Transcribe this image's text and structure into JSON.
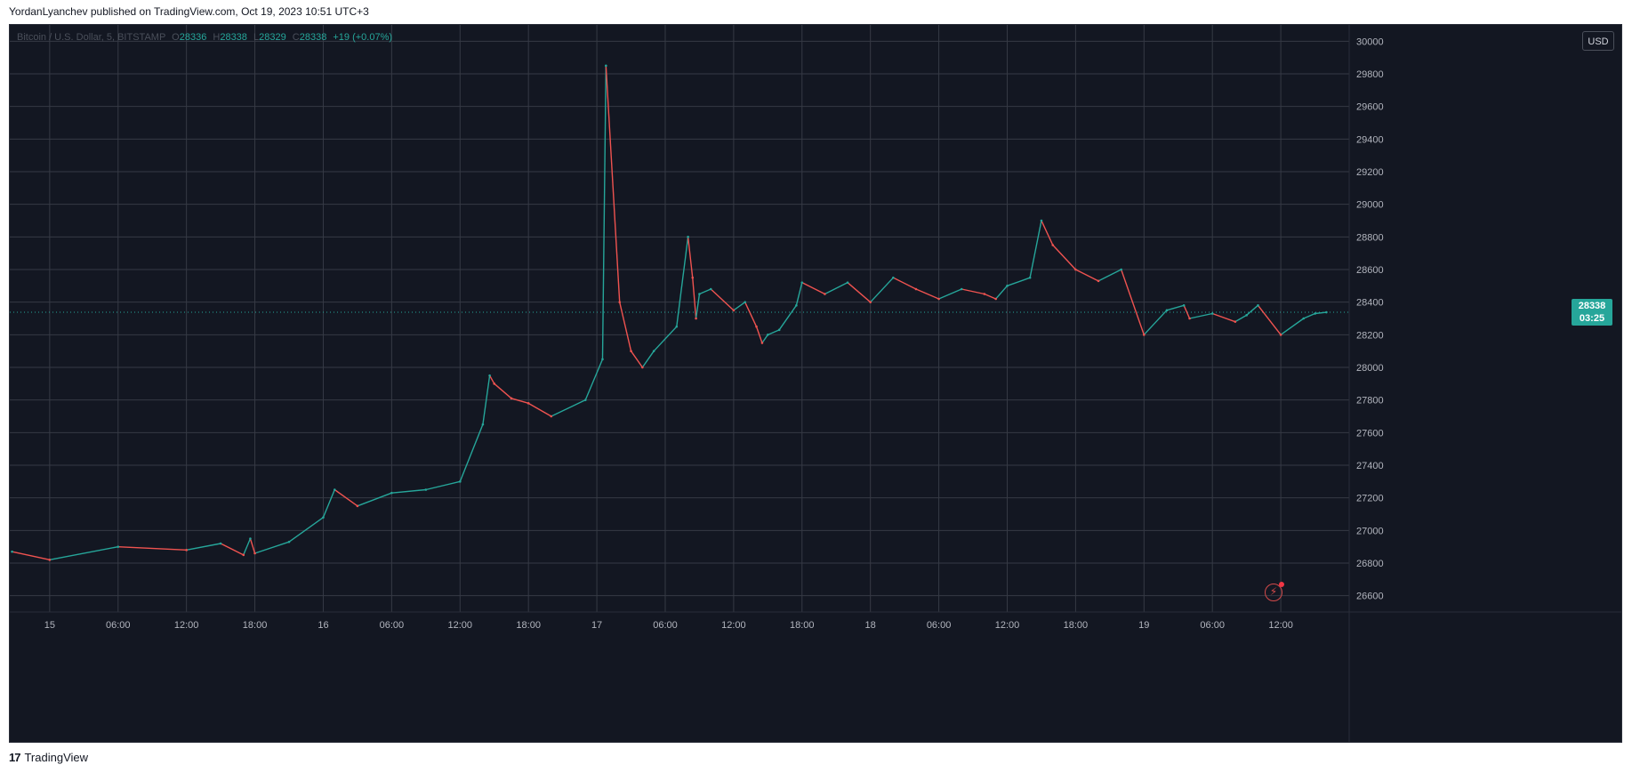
{
  "header": {
    "published_text": "YordanLyanchev published on TradingView.com, Oct 19, 2023 10:51 UTC+3"
  },
  "legend": {
    "symbol": "Bitcoin / U.S. Dollar, 5, BITSTAMP",
    "o_label": "O",
    "o_value": "28336",
    "h_label": "H",
    "h_value": "28338",
    "l_label": "L",
    "l_value": "28329",
    "c_label": "C",
    "c_value": "28338",
    "change": "+19 (+0.07%)"
  },
  "currency_button": "USD",
  "price_tag": {
    "price": "28338",
    "countdown": "03:25"
  },
  "footer": {
    "brand": "TradingView",
    "logo_glyph": "17"
  },
  "colors": {
    "background": "#131722",
    "grid": "#363a45",
    "up": "#26a69a",
    "down": "#ef5350",
    "axis_text": "#b2b5be",
    "price_line": "#26a69a"
  },
  "chart_data": {
    "type": "line",
    "symbol": "BTCUSD",
    "exchange": "BITSTAMP",
    "interval": "5",
    "ylim": [
      26500,
      30100
    ],
    "y_ticks": [
      "30000",
      "29800",
      "29600",
      "29400",
      "29200",
      "29000",
      "28800",
      "28600",
      "28400",
      "28200",
      "28000",
      "27800",
      "27600",
      "27400",
      "27200",
      "27000",
      "26800",
      "26600"
    ],
    "x_ticks": [
      "15",
      "06:00",
      "12:00",
      "18:00",
      "16",
      "06:00",
      "12:00",
      "18:00",
      "17",
      "06:00",
      "12:00",
      "18:00",
      "18",
      "06:00",
      "12:00",
      "18:00",
      "19",
      "06:00",
      "12:00"
    ],
    "x_range_hours": [
      -3.5,
      114
    ],
    "last_price": 28338,
    "grid": true,
    "series": [
      {
        "x_hours": [
          -3.3,
          0,
          6,
          12,
          15,
          17,
          17.6,
          18,
          21,
          24,
          25,
          27,
          30,
          33,
          36,
          38,
          38.6,
          39,
          40.5,
          42,
          44,
          47,
          48.5,
          48.8,
          50,
          51,
          52,
          53,
          55,
          56,
          56.4,
          56.7,
          57,
          58,
          60,
          61,
          62,
          62.5,
          63,
          64,
          65.5,
          66,
          68,
          70,
          72,
          74,
          76,
          78,
          80,
          82,
          83,
          84,
          86,
          87,
          88,
          90,
          92,
          94,
          96,
          98,
          99.5,
          100,
          102,
          104,
          105,
          106,
          108,
          110,
          111,
          112
        ],
        "close": [
          26870,
          26820,
          26900,
          26880,
          26920,
          26850,
          26950,
          26860,
          26930,
          27080,
          27250,
          27150,
          27230,
          27250,
          27300,
          27650,
          27950,
          27900,
          27810,
          27780,
          27700,
          27800,
          28050,
          29850,
          28400,
          28100,
          28000,
          28100,
          28250,
          28800,
          28550,
          28300,
          28450,
          28480,
          28350,
          28400,
          28250,
          28150,
          28200,
          28230,
          28380,
          28520,
          28450,
          28520,
          28400,
          28550,
          28480,
          28420,
          28480,
          28450,
          28420,
          28500,
          28550,
          28900,
          28750,
          28600,
          28530,
          28600,
          28200,
          28350,
          28380,
          28300,
          28330,
          28280,
          28320,
          28380,
          28200,
          28300,
          28330,
          28338
        ]
      }
    ]
  }
}
